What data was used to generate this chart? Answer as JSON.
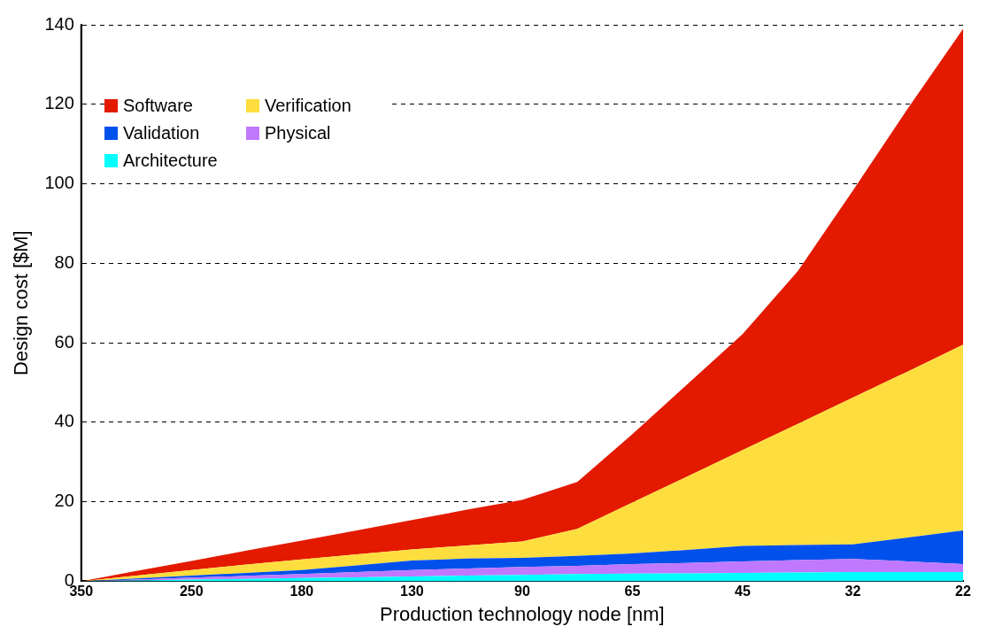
{
  "chart_data": {
    "type": "area",
    "stacked": true,
    "xlabel": "Production technology node [nm]",
    "ylabel": "Design cost [$M]",
    "categories": [
      "350",
      null,
      "250",
      null,
      "180",
      null,
      "130",
      null,
      "90",
      null,
      "65",
      null,
      "45",
      null,
      "32",
      null,
      "22"
    ],
    "ylim": [
      0,
      140
    ],
    "yticks": [
      0,
      20,
      40,
      60,
      80,
      100,
      120,
      140
    ],
    "grid": "y",
    "legend": "top left",
    "series": [
      {
        "name": "Architecture",
        "color": "#00ffff",
        "values": [
          0,
          0.2,
          0.4,
          0.6,
          0.8,
          1.0,
          1.2,
          1.4,
          1.6,
          1.8,
          1.9,
          2.0,
          2.1,
          2.2,
          2.3,
          2.3,
          2.3
        ]
      },
      {
        "name": "Physical",
        "color": "#c078ff",
        "values": [
          0,
          0.25,
          0.5,
          0.75,
          1.0,
          1.3,
          1.6,
          1.8,
          2.0,
          2.1,
          2.4,
          2.6,
          2.9,
          3.1,
          3.3,
          2.7,
          2.0
        ]
      },
      {
        "name": "Validation",
        "color": "#0050ec",
        "values": [
          0,
          0.25,
          0.5,
          0.75,
          1.0,
          1.7,
          2.4,
          2.5,
          2.3,
          2.5,
          2.7,
          3.3,
          3.9,
          3.8,
          3.7,
          6.0,
          8.5
        ]
      },
      {
        "name": "Verification",
        "color": "#fdde3e",
        "values": [
          0,
          0.7,
          1.4,
          2.1,
          2.7,
          2.8,
          2.8,
          3.3,
          4.1,
          6.8,
          12.8,
          18.5,
          24.1,
          30.5,
          36.9,
          41.8,
          46.7
        ]
      },
      {
        "name": "Software",
        "color": "#e31a00",
        "values": [
          0,
          1.2,
          2.3,
          3.5,
          4.7,
          6.0,
          7.4,
          9.0,
          10.5,
          11.8,
          17.2,
          23.2,
          29.2,
          38.4,
          52.1,
          66.2,
          79.5
        ]
      }
    ]
  }
}
